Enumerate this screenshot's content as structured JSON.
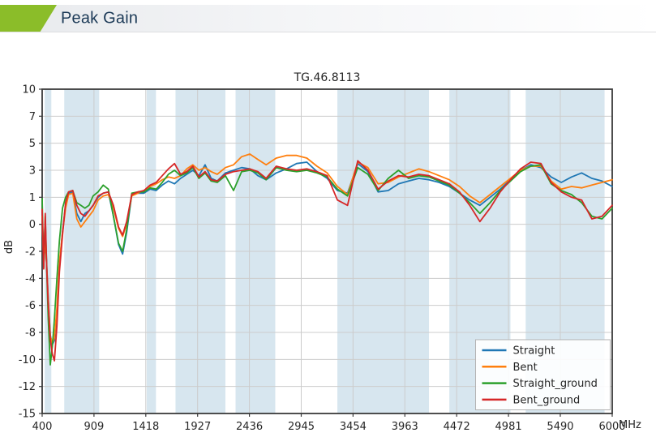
{
  "header": {
    "title": "Peak Gain",
    "accent_color": "#8bbd29",
    "title_color": "#1c3a57"
  },
  "chart_data": {
    "type": "line",
    "title": "TG.46.8113",
    "ylabel": "dB",
    "x_unit": "MHz",
    "x_range": [
      400,
      6000
    ],
    "x_ticks": [
      400,
      909,
      1418,
      1927,
      2436,
      2945,
      3454,
      3963,
      4472,
      4981,
      5490,
      6000
    ],
    "y_ticks": [
      10,
      7,
      5,
      3,
      1,
      0,
      -2,
      -4,
      -6,
      -8,
      -10,
      -12,
      -15
    ],
    "y_tick_spacing": "equal",
    "grid": true,
    "grid_color": "#cccccc",
    "spine_color": "#3a3a3a",
    "band_color": "#d7e6ef",
    "highlight_bands_mhz": [
      [
        425,
        490
      ],
      [
        617,
        960
      ],
      [
        1427,
        1518
      ],
      [
        1710,
        2200
      ],
      [
        2300,
        2690
      ],
      [
        3300,
        4200
      ],
      [
        4400,
        5000
      ],
      [
        5150,
        5925
      ]
    ],
    "legend_position": "lower right",
    "x": [
      400,
      415,
      430,
      445,
      460,
      480,
      500,
      520,
      545,
      570,
      600,
      630,
      660,
      700,
      740,
      780,
      820,
      860,
      900,
      950,
      1000,
      1050,
      1100,
      1150,
      1190,
      1230,
      1280,
      1340,
      1400,
      1460,
      1520,
      1580,
      1640,
      1700,
      1760,
      1820,
      1880,
      1940,
      2000,
      2060,
      2120,
      2200,
      2280,
      2360,
      2440,
      2520,
      2600,
      2700,
      2800,
      2900,
      3000,
      3100,
      3200,
      3300,
      3400,
      3500,
      3600,
      3700,
      3800,
      3900,
      4000,
      4100,
      4200,
      4300,
      4400,
      4500,
      4600,
      4700,
      4800,
      4900,
      5000,
      5100,
      5200,
      5300,
      5400,
      5500,
      5600,
      5700,
      5800,
      5900,
      6000
    ],
    "series": [
      {
        "name": "Straight",
        "color": "#1f77b4",
        "values": [
          0.4,
          -2.8,
          -1.0,
          -3.0,
          -5.5,
          -8.2,
          -8.9,
          -8.6,
          -6.5,
          -3.0,
          -0.5,
          0.7,
          1.3,
          1.4,
          0.4,
          0.1,
          0.4,
          0.5,
          0.7,
          1.0,
          1.3,
          1.4,
          0.3,
          -1.5,
          -2.2,
          -0.6,
          1.2,
          1.3,
          1.3,
          1.6,
          1.5,
          1.9,
          2.2,
          2.0,
          2.4,
          2.7,
          3.0,
          2.6,
          3.4,
          2.4,
          2.2,
          2.8,
          3.0,
          3.2,
          3.1,
          2.6,
          2.3,
          2.8,
          3.1,
          3.5,
          3.6,
          2.9,
          2.4,
          1.5,
          1.3,
          3.5,
          2.9,
          1.4,
          1.5,
          2.0,
          2.2,
          2.4,
          2.3,
          2.1,
          1.8,
          1.3,
          0.9,
          0.7,
          1.0,
          1.6,
          2.3,
          3.0,
          3.4,
          3.2,
          2.5,
          2.1,
          2.5,
          2.8,
          2.4,
          2.2,
          1.8
        ]
      },
      {
        "name": "Bent",
        "color": "#ff7f0e",
        "values": [
          0.3,
          -2.9,
          -1.2,
          -3.1,
          -5.6,
          -8.3,
          -8.8,
          -8.4,
          -6.2,
          -2.8,
          -0.6,
          0.6,
          1.2,
          1.3,
          0.2,
          -0.2,
          0.1,
          0.3,
          0.5,
          0.9,
          1.1,
          1.2,
          0.6,
          -0.3,
          -0.9,
          0.0,
          1.1,
          1.3,
          1.5,
          1.8,
          2.0,
          2.3,
          2.5,
          2.4,
          2.6,
          3.1,
          3.4,
          3.0,
          3.2,
          2.9,
          2.7,
          3.2,
          3.4,
          4.0,
          4.2,
          3.8,
          3.4,
          3.9,
          4.1,
          4.1,
          3.9,
          3.3,
          2.8,
          1.8,
          1.2,
          3.6,
          3.2,
          2.0,
          2.1,
          2.5,
          2.8,
          3.1,
          2.9,
          2.6,
          2.3,
          1.8,
          1.1,
          0.8,
          1.2,
          1.8,
          2.4,
          3.0,
          3.3,
          3.3,
          2.2,
          1.6,
          1.8,
          1.7,
          1.9,
          2.1,
          2.3
        ]
      },
      {
        "name": "Straight_ground",
        "color": "#2ca02c",
        "values": [
          0.95,
          -3.2,
          0.3,
          -3.3,
          -7.0,
          -10.4,
          -9.0,
          -7.0,
          -4.0,
          -1.2,
          0.6,
          1.0,
          1.4,
          1.5,
          0.8,
          0.7,
          0.6,
          0.7,
          1.1,
          1.4,
          1.9,
          1.6,
          0.3,
          -1.4,
          -2.0,
          -0.4,
          1.3,
          1.4,
          1.4,
          1.7,
          1.6,
          2.1,
          2.7,
          3.0,
          2.6,
          2.8,
          3.2,
          2.4,
          2.8,
          2.2,
          2.1,
          2.6,
          1.5,
          2.9,
          3.0,
          2.8,
          2.3,
          3.2,
          3.0,
          2.9,
          3.0,
          2.8,
          2.5,
          1.6,
          1.1,
          3.2,
          2.7,
          1.5,
          2.4,
          3.0,
          2.4,
          2.6,
          2.5,
          2.2,
          1.9,
          1.3,
          0.8,
          0.4,
          0.8,
          1.5,
          2.2,
          2.9,
          3.3,
          3.4,
          2.0,
          1.5,
          1.2,
          0.8,
          0.3,
          0.2,
          0.6
        ]
      },
      {
        "name": "Bent_ground",
        "color": "#d62728",
        "values": [
          0.55,
          -3.3,
          0.4,
          -3.2,
          -6.0,
          -8.5,
          -9.6,
          -10.1,
          -7.5,
          -3.5,
          -0.8,
          0.8,
          1.4,
          1.5,
          0.7,
          0.4,
          0.3,
          0.5,
          0.7,
          1.1,
          1.3,
          1.4,
          0.7,
          -0.2,
          -0.8,
          0.1,
          1.2,
          1.4,
          1.5,
          1.9,
          2.1,
          2.6,
          3.1,
          3.5,
          2.7,
          2.9,
          3.3,
          2.5,
          2.9,
          2.3,
          2.2,
          2.7,
          2.9,
          3.0,
          3.1,
          2.9,
          2.4,
          3.3,
          3.1,
          3.0,
          3.1,
          2.9,
          2.6,
          0.9,
          0.7,
          3.7,
          3.0,
          1.6,
          2.2,
          2.6,
          2.5,
          2.7,
          2.6,
          2.3,
          2.0,
          1.4,
          0.7,
          0.1,
          0.6,
          1.4,
          2.3,
          3.1,
          3.6,
          3.5,
          2.1,
          1.4,
          1.0,
          0.9,
          0.2,
          0.3,
          0.7
        ]
      }
    ]
  }
}
